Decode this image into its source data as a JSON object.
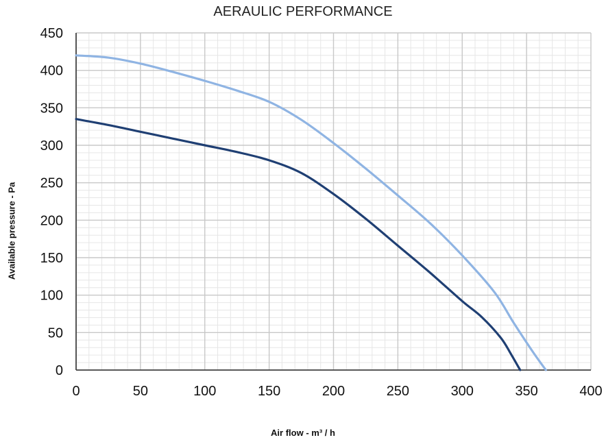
{
  "chart_data": {
    "type": "line",
    "title": "AERAULIC PERFORMANCE",
    "xlabel": "Air flow - m³ / h",
    "ylabel": "Available pressure - Pa",
    "xlim": [
      0,
      400
    ],
    "ylim": [
      0,
      450
    ],
    "x_ticks": [
      0,
      50,
      100,
      150,
      200,
      250,
      300,
      350,
      400
    ],
    "y_ticks": [
      0,
      50,
      100,
      150,
      200,
      250,
      300,
      350,
      400,
      450
    ],
    "grid": true,
    "legend": "none",
    "series": [
      {
        "color": "#8fb4e3",
        "points": [
          [
            0,
            420
          ],
          [
            25,
            417
          ],
          [
            50,
            409
          ],
          [
            75,
            398
          ],
          [
            100,
            386
          ],
          [
            125,
            373
          ],
          [
            150,
            358
          ],
          [
            175,
            334
          ],
          [
            200,
            303
          ],
          [
            225,
            269
          ],
          [
            250,
            233
          ],
          [
            275,
            196
          ],
          [
            300,
            153
          ],
          [
            325,
            104
          ],
          [
            340,
            63
          ],
          [
            355,
            24
          ],
          [
            365,
            0
          ]
        ]
      },
      {
        "color": "#1f3f73",
        "points": [
          [
            0,
            335
          ],
          [
            25,
            327
          ],
          [
            50,
            318
          ],
          [
            75,
            309
          ],
          [
            100,
            300
          ],
          [
            125,
            291
          ],
          [
            150,
            280
          ],
          [
            175,
            263
          ],
          [
            200,
            235
          ],
          [
            225,
            202
          ],
          [
            250,
            166
          ],
          [
            275,
            130
          ],
          [
            300,
            92
          ],
          [
            315,
            71
          ],
          [
            330,
            43
          ],
          [
            338,
            21
          ],
          [
            345,
            0
          ]
        ]
      }
    ]
  }
}
